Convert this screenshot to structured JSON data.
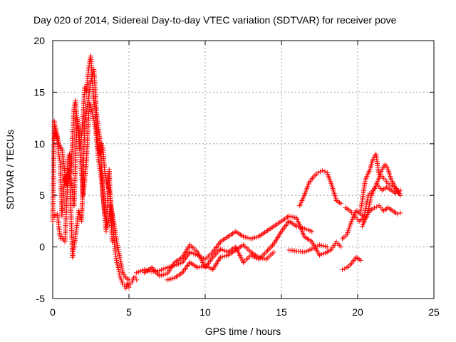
{
  "chart_data": {
    "type": "scatter",
    "title": "Day 020 of 2014, Sidereal Day-to-day VTEC variation (SDTVAR) for receiver pove",
    "xlabel": "GPS time / hours",
    "ylabel": "SDTVAR / TECUs",
    "xlim": [
      0,
      25
    ],
    "ylim": [
      -5,
      20
    ],
    "x_ticks": [
      "0",
      "5",
      "10",
      "15",
      "20",
      "25"
    ],
    "y_ticks": [
      "-5",
      "0",
      "5",
      "10",
      "15",
      "20"
    ],
    "grid": true,
    "marker": "+",
    "color": "#ff0000",
    "series": [
      {
        "name": "SDTVAR",
        "segments": [
          {
            "x": [
              0.0,
              0.1,
              0.2,
              0.3,
              0.4,
              0.5,
              0.6,
              0.7,
              0.8,
              0.9,
              1.0,
              1.1,
              1.2,
              1.3,
              1.4,
              1.5,
              1.6,
              1.7,
              1.8,
              1.9,
              2.0,
              2.1,
              2.2,
              2.3,
              2.4,
              2.5,
              2.6,
              2.7,
              2.8,
              2.9,
              3.0,
              3.1,
              3.2,
              3.3,
              3.4,
              3.5,
              3.6,
              3.7,
              3.8,
              3.9,
              4.0,
              4.1,
              4.2,
              4.3,
              4.4,
              4.5,
              4.6,
              4.7,
              4.8,
              4.9,
              5.0,
              5.1,
              5.2,
              5.3,
              5.4,
              5.5
            ],
            "y": [
              2.5,
              12.2,
              11.0,
              10.5,
              9.0,
              8.0,
              3.0,
              5.0,
              7.0,
              6.0,
              8.5,
              9.0,
              7.0,
              10.5,
              13.5,
              14.2,
              12.0,
              11.5,
              9.5,
              11.0,
              13.0,
              15.5,
              15.0,
              16.5,
              17.8,
              18.5,
              16.0,
              14.0,
              13.0,
              11.0,
              9.5,
              9.0,
              10.0,
              9.5,
              7.5,
              6.5,
              6.0,
              5.5,
              4.5,
              3.0,
              1.0,
              -0.5,
              -1.5,
              -2.0,
              -2.8,
              -3.2,
              -3.6,
              -3.8,
              -4.0,
              -3.5,
              -3.9,
              -3.6,
              -3.4,
              -3.0,
              -2.9,
              -3.2
            ]
          },
          {
            "x": [
              0.1,
              0.3,
              0.5,
              0.6,
              0.8,
              1.0,
              1.2,
              1.4,
              1.6,
              1.8,
              2.0,
              2.2,
              2.4,
              2.6,
              2.8,
              3.0,
              3.2,
              3.4,
              3.6,
              3.8,
              4.0,
              4.2,
              4.4,
              4.6,
              4.8,
              5.0
            ],
            "y": [
              3.0,
              3.2,
              0.8,
              1.0,
              0.5,
              7.0,
              6.5,
              4.0,
              12.5,
              9.0,
              5.0,
              8.0,
              14.0,
              13.0,
              11.5,
              8.5,
              6.5,
              3.5,
              2.0,
              4.0,
              2.5,
              0.5,
              -1.0,
              -2.5,
              -3.0,
              -3.2
            ]
          },
          {
            "x": [
              0.1,
              0.2,
              0.4,
              0.6,
              0.9,
              1.1,
              1.3,
              1.5,
              1.7,
              1.9,
              2.1,
              2.3,
              2.5,
              2.7,
              2.9,
              3.1,
              3.3,
              3.5,
              3.7,
              3.9
            ],
            "y": [
              10.5,
              11.5,
              10.0,
              9.5,
              6.0,
              7.5,
              -1.0,
              1.0,
              3.5,
              2.5,
              12.0,
              14.0,
              16.0,
              17.2,
              12.5,
              10.5,
              5.0,
              1.5,
              7.5,
              0.5
            ]
          },
          {
            "x": [
              5.5,
              6.0,
              6.5,
              7.0,
              7.5,
              8.0,
              8.5,
              9.0,
              9.5,
              10.0,
              10.5,
              11.0,
              11.5,
              12.0,
              12.5,
              13.0,
              13.5,
              14.0,
              14.5,
              15.0,
              15.5,
              16.0,
              16.5,
              17.0,
              17.5,
              18.0,
              18.3,
              18.6,
              18.9
            ],
            "y": [
              -2.5,
              -2.2,
              -2.4,
              -2.3,
              -2.0,
              -1.8,
              -1.5,
              -0.5,
              -0.8,
              -1.2,
              -0.5,
              0.5,
              1.0,
              1.5,
              1.0,
              0.8,
              1.0,
              1.5,
              2.0,
              2.5,
              3.0,
              2.8,
              1.0,
              0.5,
              -0.8,
              -0.5,
              -0.2,
              0.5,
              0.0
            ]
          },
          {
            "x": [
              6.0,
              6.5,
              7.0,
              7.5,
              8.0,
              8.5,
              9.0,
              9.5,
              10.0,
              10.5,
              11.0,
              11.5,
              12.0,
              12.5,
              13.0,
              13.5,
              14.0,
              14.5,
              15.0,
              15.5,
              16.0,
              16.5,
              17.0
            ],
            "y": [
              -2.5,
              -2.0,
              -2.8,
              -2.6,
              -1.5,
              -1.0,
              0.2,
              -0.5,
              -2.0,
              -1.0,
              -0.2,
              -0.5,
              0.0,
              -1.5,
              -0.8,
              -1.2,
              -0.5,
              0.3,
              1.5,
              2.5,
              2.0,
              1.8,
              1.5
            ]
          },
          {
            "x": [
              7.5,
              8.0,
              8.5,
              9.0,
              9.5,
              10.0,
              10.5,
              11.0,
              11.5,
              12.0,
              12.5,
              13.0,
              13.5,
              14.0,
              14.5
            ],
            "y": [
              -3.2,
              -3.0,
              -2.5,
              -1.5,
              -2.0,
              -1.8,
              -2.2,
              -1.0,
              -0.8,
              -0.3,
              0.2,
              -0.5,
              -1.0,
              -1.2,
              -0.5
            ]
          },
          {
            "x": [
              15.5,
              16.0,
              16.5,
              17.0,
              17.5,
              18.0
            ],
            "y": [
              -0.3,
              -0.4,
              -0.5,
              -0.2,
              0.2,
              0.0
            ]
          },
          {
            "x": [
              16.2,
              16.5,
              16.8,
              17.1,
              17.4,
              17.7,
              18.0,
              18.3,
              18.6,
              18.9
            ],
            "y": [
              4.0,
              5.0,
              6.2,
              6.8,
              7.2,
              7.4,
              7.2,
              6.0,
              4.5,
              4.2
            ]
          },
          {
            "x": [
              19.0,
              19.3,
              19.6,
              19.9,
              20.2
            ],
            "y": [
              -2.2,
              -2.0,
              -1.6,
              -1.0,
              -1.3
            ]
          },
          {
            "x": [
              19.0,
              19.3,
              19.6,
              19.9,
              20.2,
              20.5,
              20.8,
              21.1,
              21.4,
              21.7,
              22.0,
              22.3,
              22.6,
              22.8
            ],
            "y": [
              0.8,
              1.2,
              2.5,
              3.5,
              3.2,
              2.8,
              3.5,
              3.8,
              4.0,
              3.5,
              3.8,
              3.5,
              3.2,
              3.3
            ]
          },
          {
            "x": [
              19.2,
              19.5,
              19.8,
              20.1,
              20.4,
              20.7,
              21.0,
              21.3,
              21.6,
              21.9,
              22.2,
              22.5,
              22.8
            ],
            "y": [
              3.8,
              3.5,
              3.0,
              2.5,
              2.8,
              5.0,
              5.5,
              6.0,
              5.5,
              5.8,
              5.5,
              5.2,
              5.5
            ]
          },
          {
            "x": [
              20.2,
              20.5,
              20.8,
              21.0,
              21.2,
              21.4,
              21.6,
              21.8,
              22.0,
              22.2,
              22.4,
              22.6,
              22.8
            ],
            "y": [
              3.5,
              6.5,
              7.5,
              8.5,
              9.0,
              7.0,
              7.5,
              8.0,
              7.5,
              6.5,
              6.0,
              5.5,
              5.0
            ]
          },
          {
            "x": [
              20.3,
              20.6,
              20.9,
              21.2,
              21.5,
              21.8,
              22.1,
              22.4,
              22.7
            ],
            "y": [
              2.0,
              3.0,
              5.0,
              6.0,
              7.0,
              6.5,
              6.0,
              5.8,
              5.2
            ]
          }
        ]
      }
    ]
  }
}
